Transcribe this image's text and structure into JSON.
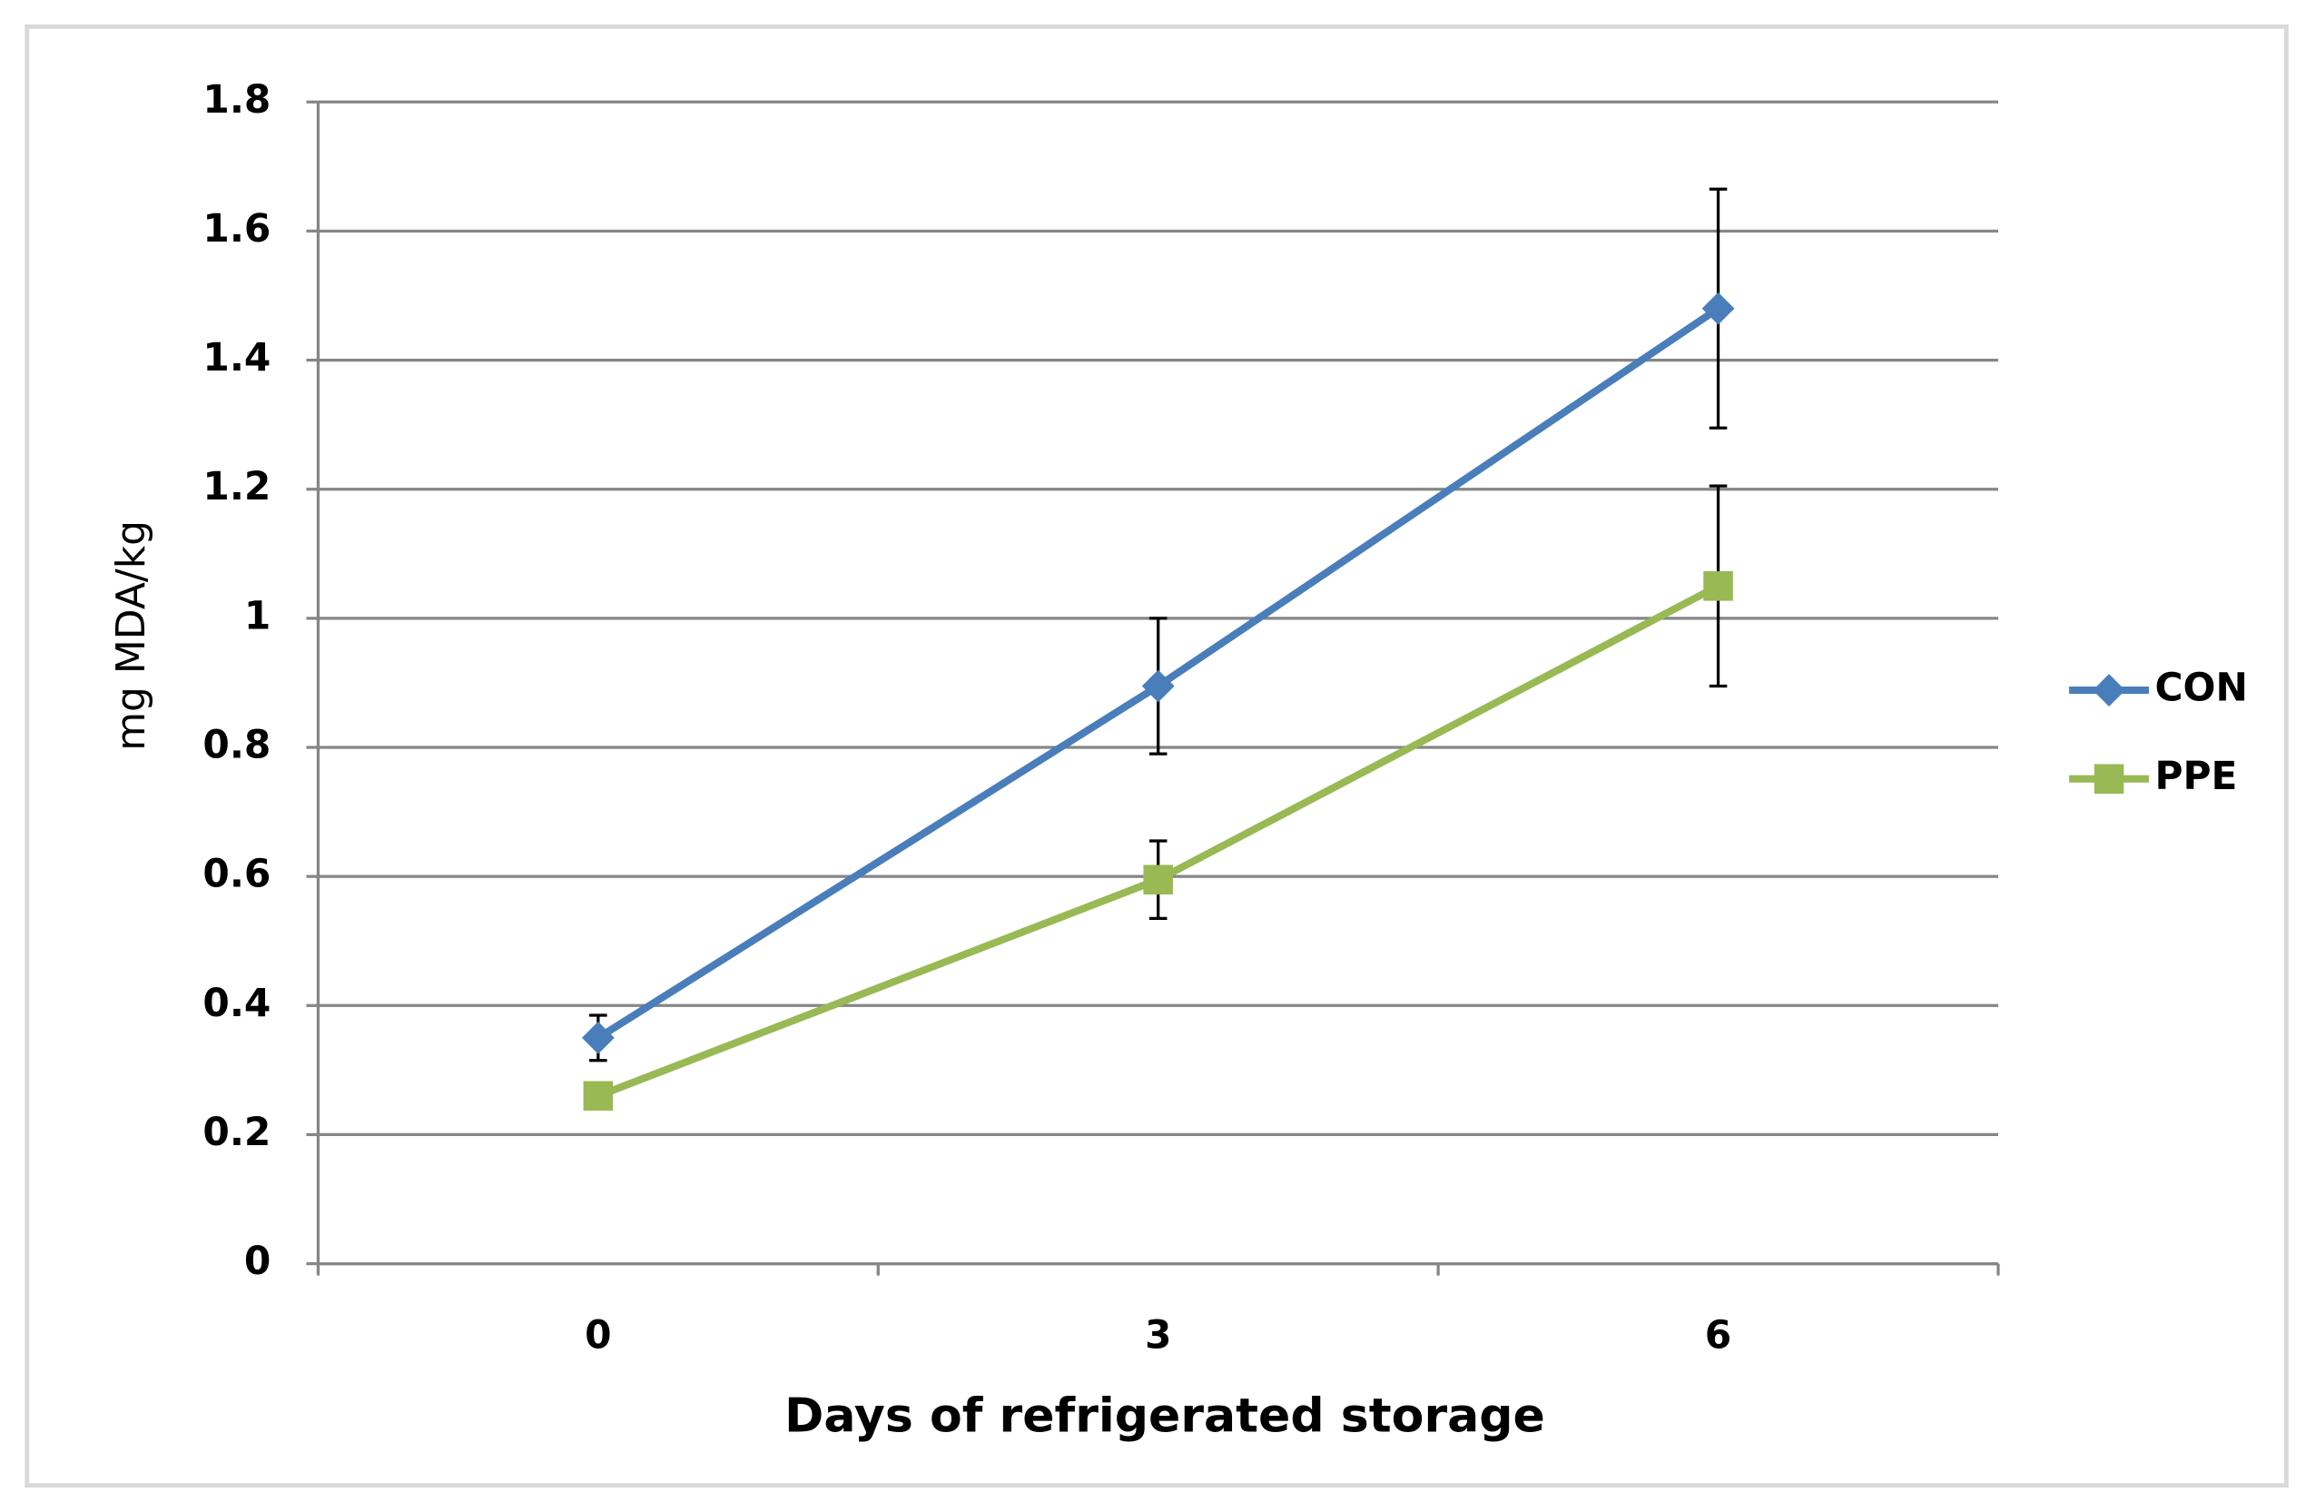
{
  "chart_data": {
    "type": "line",
    "x_label": "Days of refrigerated storage",
    "y_label": "mg MDA/kg",
    "categories": [
      "0",
      "3",
      "6"
    ],
    "series": [
      {
        "name": "CON",
        "color": "#4a7ebb",
        "marker": "diamond",
        "values": [
          0.35,
          0.895,
          1.48
        ],
        "errors": [
          0.035,
          0.105,
          0.185
        ]
      },
      {
        "name": "PPE",
        "color": "#98b954",
        "marker": "square",
        "values": [
          0.26,
          0.595,
          1.05
        ],
        "errors": [
          0,
          0.06,
          0.155
        ]
      }
    ],
    "ylim": [
      0,
      1.8
    ],
    "yticks": [
      0,
      0.2,
      0.4,
      0.6,
      0.8,
      1,
      1.2,
      1.4,
      1.6,
      1.8
    ],
    "grid": true,
    "legend": "right"
  }
}
